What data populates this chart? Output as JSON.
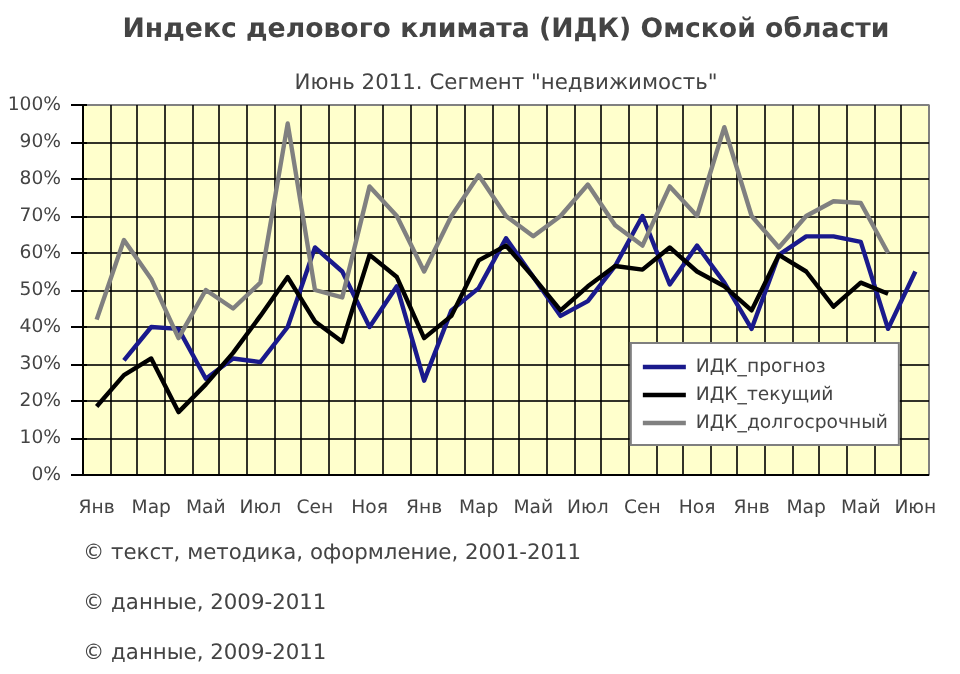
{
  "chart_data": {
    "type": "line",
    "title": "Индекс делового климата (ИДК) Омской области",
    "subtitle": "Июнь 2011. Сегмент \"недвижимость\"",
    "categories": [
      "Янв",
      null,
      "Мар",
      null,
      "Май",
      null,
      "Июл",
      null,
      "Сен",
      null,
      "Ноя",
      null,
      "Янв",
      null,
      "Мар",
      null,
      "Май",
      null,
      "Июл",
      null,
      "Сен",
      null,
      "Ноя",
      null,
      "Янв",
      null,
      "Мар",
      null,
      "Май",
      null,
      "Июн"
    ],
    "series": [
      {
        "name": "ИДК_прогноз",
        "color": "#1a1a8c",
        "values": [
          null,
          31,
          40,
          39.5,
          26,
          31.5,
          30.5,
          40,
          61.5,
          55,
          40,
          51,
          25.5,
          44.5,
          50.5,
          64,
          53.5,
          43,
          47,
          56.5,
          70,
          51.5,
          62,
          52,
          39.5,
          59.5,
          64.5,
          64.5,
          63,
          39.5,
          55
        ]
      },
      {
        "name": "ИДК_текущий",
        "color": "#000000",
        "values": [
          18.5,
          27,
          31.5,
          17,
          24.5,
          33,
          43,
          53.5,
          41.5,
          36,
          59.5,
          53.5,
          37,
          43,
          58,
          62,
          53.5,
          44.5,
          51,
          56.5,
          55.5,
          61.5,
          55,
          51,
          44.5,
          59.5,
          55,
          45.5,
          52,
          49,
          null
        ]
      },
      {
        "name": "ИДК_долгосрочный",
        "color": "#808080",
        "values": [
          42,
          63.5,
          53,
          37,
          50,
          45,
          52,
          95,
          50,
          48,
          78,
          70,
          55,
          70,
          81,
          70,
          64.5,
          70,
          78.5,
          67.5,
          62,
          78,
          70,
          94,
          70,
          61.5,
          70,
          74,
          73.5,
          60,
          null
        ]
      }
    ],
    "ylim": [
      0,
      100
    ],
    "yticks": [
      {
        "value": 0,
        "label": "0%"
      },
      {
        "value": 10,
        "label": "10%"
      },
      {
        "value": 20,
        "label": "20%"
      },
      {
        "value": 30,
        "label": "30%"
      },
      {
        "value": 40,
        "label": "40%"
      },
      {
        "value": 50,
        "label": "50%"
      },
      {
        "value": 60,
        "label": "60%"
      },
      {
        "value": 70,
        "label": "70%"
      },
      {
        "value": 80,
        "label": "80%"
      },
      {
        "value": 90,
        "label": "90%"
      },
      {
        "value": 100,
        "label": "100%"
      }
    ],
    "grid": true,
    "legend": "bottom right",
    "line_style": "solid",
    "annotations": [
      "© текст, методика, оформление, 2001-2011",
      "© данные, 2009-2011",
      "© данные, 2009-2011"
    ]
  }
}
